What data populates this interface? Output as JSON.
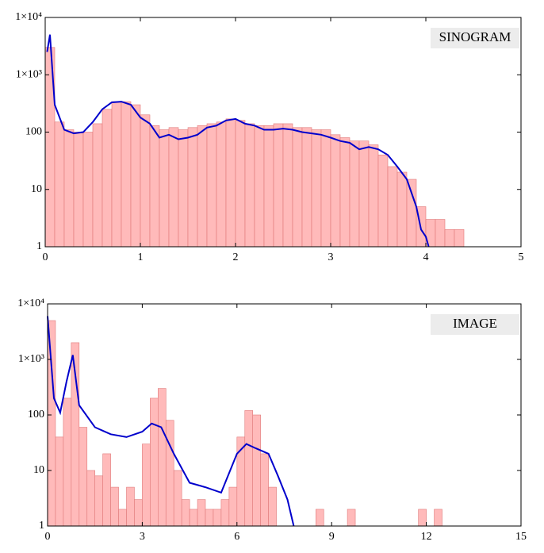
{
  "chart_data": [
    {
      "type": "histogram",
      "annotation": "SINOGRAM",
      "log_y": true,
      "color": "#ffbaba",
      "edge_color": "#e07a7a",
      "bins": [
        0,
        0.1,
        0.2,
        0.3,
        0.4,
        0.5,
        0.6,
        0.7,
        0.8,
        0.9,
        1.0,
        1.1,
        1.2,
        1.3,
        1.4,
        1.5,
        1.6,
        1.7,
        1.8,
        1.9,
        2.0,
        2.1,
        2.2,
        2.3,
        2.4,
        2.5,
        2.6,
        2.7,
        2.8,
        2.9,
        3.0,
        3.1,
        3.2,
        3.3,
        3.4,
        3.5,
        3.6,
        3.7,
        3.8,
        3.9,
        4.0,
        4.1,
        4.2,
        4.3,
        4.4
      ],
      "values": [
        3000,
        150,
        110,
        100,
        100,
        140,
        250,
        340,
        340,
        300,
        200,
        130,
        110,
        120,
        110,
        120,
        130,
        140,
        150,
        170,
        160,
        140,
        130,
        130,
        140,
        140,
        120,
        120,
        110,
        110,
        90,
        80,
        70,
        70,
        60,
        40,
        25,
        20,
        15,
        5,
        3,
        3,
        2,
        2
      ],
      "line": {
        "color": "#0000cc",
        "x": [
          0.02,
          0.05,
          0.1,
          0.2,
          0.3,
          0.4,
          0.5,
          0.6,
          0.7,
          0.8,
          0.9,
          1.0,
          1.1,
          1.2,
          1.3,
          1.4,
          1.5,
          1.6,
          1.7,
          1.8,
          1.9,
          2.0,
          2.1,
          2.2,
          2.3,
          2.4,
          2.5,
          2.6,
          2.7,
          2.8,
          2.9,
          3.0,
          3.1,
          3.2,
          3.3,
          3.4,
          3.5,
          3.6,
          3.7,
          3.8,
          3.9,
          3.95,
          4.0,
          4.03
        ],
        "y": [
          2500,
          5000,
          300,
          110,
          95,
          100,
          150,
          250,
          330,
          340,
          300,
          180,
          140,
          80,
          90,
          75,
          80,
          90,
          120,
          130,
          160,
          170,
          140,
          130,
          110,
          110,
          115,
          110,
          100,
          95,
          90,
          80,
          70,
          65,
          50,
          55,
          50,
          40,
          25,
          15,
          5,
          2,
          1.5,
          1
        ]
      },
      "xlim": [
        0,
        5
      ],
      "xticks": [
        0,
        1,
        2,
        3,
        4,
        5
      ],
      "ylim": [
        1,
        10000
      ],
      "yticks": [
        1,
        10,
        100,
        {
          "value": 1000,
          "label": "1×10³"
        },
        {
          "value": 10000,
          "label": "1×10⁴"
        }
      ]
    },
    {
      "type": "histogram",
      "annotation": "IMAGE",
      "log_y": true,
      "color": "#ffbaba",
      "edge_color": "#e07a7a",
      "bins": [
        0,
        0.25,
        0.5,
        0.75,
        1.0,
        1.25,
        1.5,
        1.75,
        2.0,
        2.25,
        2.5,
        2.75,
        3.0,
        3.25,
        3.5,
        3.75,
        4.0,
        4.25,
        4.5,
        4.75,
        5.0,
        5.25,
        5.5,
        5.75,
        6.0,
        6.25,
        6.5,
        6.75,
        7.0,
        7.25,
        7.5,
        7.75,
        8.0,
        8.25,
        8.5,
        8.75,
        9.0,
        9.25,
        9.5,
        9.75,
        10.0,
        10.25,
        10.5,
        10.75,
        11.0,
        11.25,
        11.5,
        11.75,
        12.0,
        12.25,
        12.5
      ],
      "values": [
        5000,
        40,
        200,
        2000,
        60,
        10,
        8,
        20,
        5,
        2,
        5,
        3,
        30,
        200,
        300,
        80,
        10,
        3,
        2,
        3,
        2,
        2,
        3,
        5,
        40,
        120,
        100,
        20,
        5,
        1,
        1,
        1,
        1,
        1,
        2,
        1,
        1,
        1,
        2,
        1,
        1,
        1,
        1,
        1,
        1,
        1,
        1,
        2,
        1,
        2
      ],
      "line": {
        "color": "#0000cc",
        "x": [
          0,
          0.2,
          0.4,
          0.6,
          0.8,
          1.0,
          1.5,
          2,
          2.5,
          3,
          3.3,
          3.6,
          4,
          4.5,
          5,
          5.5,
          6,
          6.3,
          6.6,
          7,
          7.3,
          7.6,
          7.8
        ],
        "y": [
          6000,
          200,
          110,
          400,
          1200,
          150,
          60,
          45,
          40,
          50,
          70,
          60,
          20,
          6,
          5,
          4,
          20,
          30,
          25,
          20,
          8,
          3,
          1
        ]
      },
      "xlim": [
        0,
        15
      ],
      "xticks": [
        0,
        3,
        6,
        9,
        12,
        15
      ],
      "ylim": [
        1,
        10000
      ],
      "yticks": [
        1,
        10,
        100,
        {
          "value": 1000,
          "label": "1×10³"
        },
        {
          "value": 10000,
          "label": "1×10⁴"
        }
      ]
    }
  ]
}
